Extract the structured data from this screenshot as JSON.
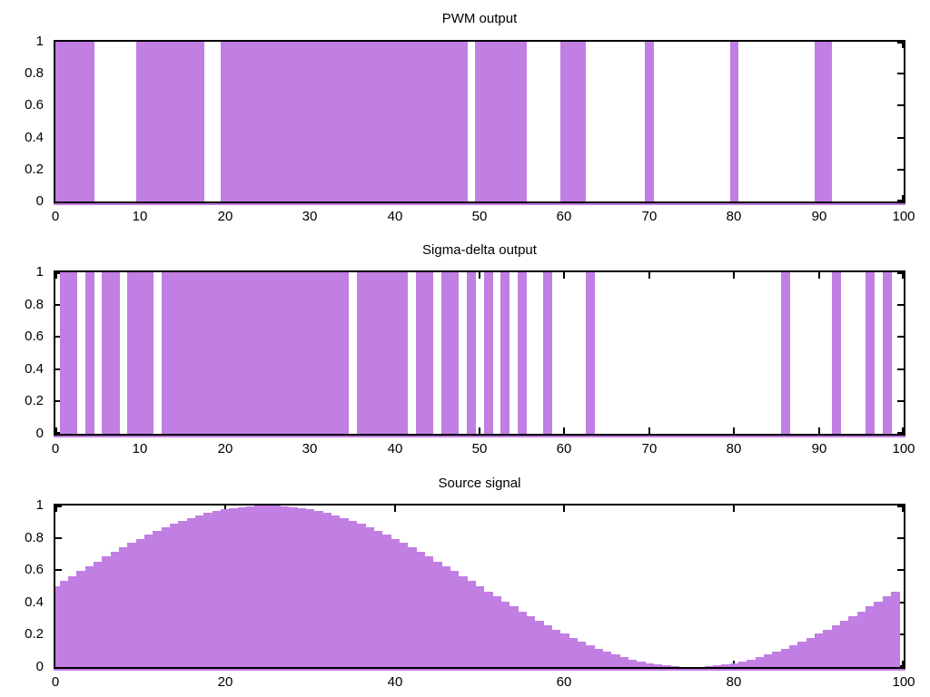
{
  "colors": {
    "bar_fill": "#c17ee3",
    "axis": "#000000",
    "text": "#000000",
    "background": "#ffffff"
  },
  "chart_data": [
    {
      "type": "bar",
      "title": "PWM output",
      "xlabel": "",
      "ylabel": "",
      "xlim": [
        0,
        100
      ],
      "ylim": [
        0,
        1
      ],
      "grid": false,
      "legend": "none",
      "box_width": 1,
      "x_tick_values": [
        0,
        10,
        20,
        30,
        40,
        50,
        60,
        70,
        80,
        90,
        100
      ],
      "x_tick_labels": [
        "0",
        "10",
        "20",
        "30",
        "40",
        "50",
        "60",
        "70",
        "80",
        "90",
        "100"
      ],
      "y_tick_values": [
        1,
        0.8,
        0.6,
        0.4,
        0.2,
        0
      ],
      "y_tick_labels": [
        "1",
        "0.8",
        "0.6",
        "0.4",
        "0.2",
        "0"
      ],
      "x": [
        0,
        1,
        2,
        3,
        4,
        5,
        6,
        7,
        8,
        9,
        10,
        11,
        12,
        13,
        14,
        15,
        16,
        17,
        18,
        19,
        20,
        21,
        22,
        23,
        24,
        25,
        26,
        27,
        28,
        29,
        30,
        31,
        32,
        33,
        34,
        35,
        36,
        37,
        38,
        39,
        40,
        41,
        42,
        43,
        44,
        45,
        46,
        47,
        48,
        49,
        50,
        51,
        52,
        53,
        54,
        55,
        56,
        57,
        58,
        59,
        60,
        61,
        62,
        63,
        64,
        65,
        66,
        67,
        68,
        69,
        70,
        71,
        72,
        73,
        74,
        75,
        76,
        77,
        78,
        79,
        80,
        81,
        82,
        83,
        84,
        85,
        86,
        87,
        88,
        89,
        90,
        91,
        92,
        93,
        94,
        95,
        96,
        97,
        98,
        99
      ],
      "values": [
        1,
        1,
        1,
        1,
        1,
        0,
        0,
        0,
        0,
        0,
        1,
        1,
        1,
        1,
        1,
        1,
        1,
        1,
        0,
        0,
        1,
        1,
        1,
        1,
        1,
        1,
        1,
        1,
        1,
        1,
        1,
        1,
        1,
        1,
        1,
        1,
        1,
        1,
        1,
        1,
        1,
        1,
        1,
        1,
        1,
        1,
        1,
        1,
        1,
        0,
        1,
        1,
        1,
        1,
        1,
        1,
        0,
        0,
        0,
        0,
        1,
        1,
        1,
        0,
        0,
        0,
        0,
        0,
        0,
        0,
        1,
        0,
        0,
        0,
        0,
        0,
        0,
        0,
        0,
        0,
        1,
        0,
        0,
        0,
        0,
        0,
        0,
        0,
        0,
        0,
        1,
        1,
        0,
        0,
        0,
        0,
        0,
        0,
        0,
        0
      ]
    },
    {
      "type": "bar",
      "title": "Sigma-delta output",
      "xlabel": "",
      "ylabel": "",
      "xlim": [
        0,
        100
      ],
      "ylim": [
        0,
        1
      ],
      "grid": false,
      "legend": "none",
      "box_width": 1,
      "x_tick_values": [
        0,
        10,
        20,
        30,
        40,
        50,
        60,
        70,
        80,
        90,
        100
      ],
      "x_tick_labels": [
        "0",
        "10",
        "20",
        "30",
        "40",
        "50",
        "60",
        "70",
        "80",
        "90",
        "100"
      ],
      "y_tick_values": [
        1,
        0.8,
        0.6,
        0.4,
        0.2,
        0
      ],
      "y_tick_labels": [
        "1",
        "0.8",
        "0.6",
        "0.4",
        "0.2",
        "0"
      ],
      "x": [
        0,
        1,
        2,
        3,
        4,
        5,
        6,
        7,
        8,
        9,
        10,
        11,
        12,
        13,
        14,
        15,
        16,
        17,
        18,
        19,
        20,
        21,
        22,
        23,
        24,
        25,
        26,
        27,
        28,
        29,
        30,
        31,
        32,
        33,
        34,
        35,
        36,
        37,
        38,
        39,
        40,
        41,
        42,
        43,
        44,
        45,
        46,
        47,
        48,
        49,
        50,
        51,
        52,
        53,
        54,
        55,
        56,
        57,
        58,
        59,
        60,
        61,
        62,
        63,
        64,
        65,
        66,
        67,
        68,
        69,
        70,
        71,
        72,
        73,
        74,
        75,
        76,
        77,
        78,
        79,
        80,
        81,
        82,
        83,
        84,
        85,
        86,
        87,
        88,
        89,
        90,
        91,
        92,
        93,
        94,
        95,
        96,
        97,
        98,
        99
      ],
      "values": [
        0,
        1,
        1,
        0,
        1,
        0,
        1,
        1,
        0,
        1,
        1,
        1,
        0,
        1,
        1,
        1,
        1,
        1,
        1,
        1,
        1,
        1,
        1,
        1,
        1,
        1,
        1,
        1,
        1,
        1,
        1,
        1,
        1,
        1,
        1,
        0,
        1,
        1,
        1,
        1,
        1,
        1,
        0,
        1,
        1,
        0,
        1,
        1,
        0,
        1,
        0,
        1,
        0,
        1,
        0,
        1,
        0,
        0,
        1,
        0,
        0,
        0,
        0,
        1,
        0,
        0,
        0,
        0,
        0,
        0,
        0,
        0,
        0,
        0,
        0,
        0,
        0,
        0,
        0,
        0,
        0,
        0,
        0,
        0,
        0,
        0,
        1,
        0,
        0,
        0,
        0,
        0,
        1,
        0,
        0,
        0,
        1,
        0,
        1,
        0
      ]
    },
    {
      "type": "bar",
      "title": "Source signal",
      "xlabel": "",
      "ylabel": "",
      "xlim": [
        0,
        100
      ],
      "ylim": [
        0,
        1
      ],
      "grid": false,
      "legend": "none",
      "box_width": 1,
      "x_tick_values": [
        0,
        20,
        40,
        60,
        80,
        100
      ],
      "x_tick_labels": [
        "0",
        "20",
        "40",
        "60",
        "80",
        "100"
      ],
      "y_tick_values": [
        1,
        0.8,
        0.6,
        0.4,
        0.2,
        0
      ],
      "y_tick_labels": [
        "1",
        "0.8",
        "0.6",
        "0.4",
        "0.2",
        "0"
      ],
      "x": [
        0,
        1,
        2,
        3,
        4,
        5,
        6,
        7,
        8,
        9,
        10,
        11,
        12,
        13,
        14,
        15,
        16,
        17,
        18,
        19,
        20,
        21,
        22,
        23,
        24,
        25,
        26,
        27,
        28,
        29,
        30,
        31,
        32,
        33,
        34,
        35,
        36,
        37,
        38,
        39,
        40,
        41,
        42,
        43,
        44,
        45,
        46,
        47,
        48,
        49,
        50,
        51,
        52,
        53,
        54,
        55,
        56,
        57,
        58,
        59,
        60,
        61,
        62,
        63,
        64,
        65,
        66,
        67,
        68,
        69,
        70,
        71,
        72,
        73,
        74,
        75,
        76,
        77,
        78,
        79,
        80,
        81,
        82,
        83,
        84,
        85,
        86,
        87,
        88,
        89,
        90,
        91,
        92,
        93,
        94,
        95,
        96,
        97,
        98,
        99
      ],
      "values": [
        0.5,
        0.5314,
        0.5627,
        0.5937,
        0.6243,
        0.6545,
        0.6841,
        0.7129,
        0.7409,
        0.7679,
        0.7939,
        0.8187,
        0.8423,
        0.8645,
        0.8853,
        0.9045,
        0.9222,
        0.9382,
        0.9524,
        0.9649,
        0.9755,
        0.9843,
        0.9911,
        0.9961,
        0.999,
        1.0,
        0.999,
        0.9961,
        0.9911,
        0.9843,
        0.9755,
        0.9649,
        0.9524,
        0.9382,
        0.9222,
        0.9045,
        0.8853,
        0.8645,
        0.8423,
        0.8187,
        0.7939,
        0.7679,
        0.7409,
        0.7129,
        0.6841,
        0.6545,
        0.6243,
        0.5937,
        0.5627,
        0.5314,
        0.5,
        0.4686,
        0.4373,
        0.4063,
        0.3757,
        0.3455,
        0.3159,
        0.2871,
        0.2591,
        0.2321,
        0.2061,
        0.1813,
        0.1577,
        0.1355,
        0.1147,
        0.0955,
        0.0778,
        0.0618,
        0.0476,
        0.0351,
        0.0245,
        0.0157,
        0.0089,
        0.0039,
        0.001,
        0.0,
        0.001,
        0.0039,
        0.0089,
        0.0157,
        0.0245,
        0.0351,
        0.0476,
        0.0618,
        0.0778,
        0.0955,
        0.1147,
        0.1355,
        0.1577,
        0.1813,
        0.2061,
        0.2321,
        0.2591,
        0.2871,
        0.3159,
        0.3455,
        0.3757,
        0.4063,
        0.4373,
        0.4686
      ]
    }
  ]
}
